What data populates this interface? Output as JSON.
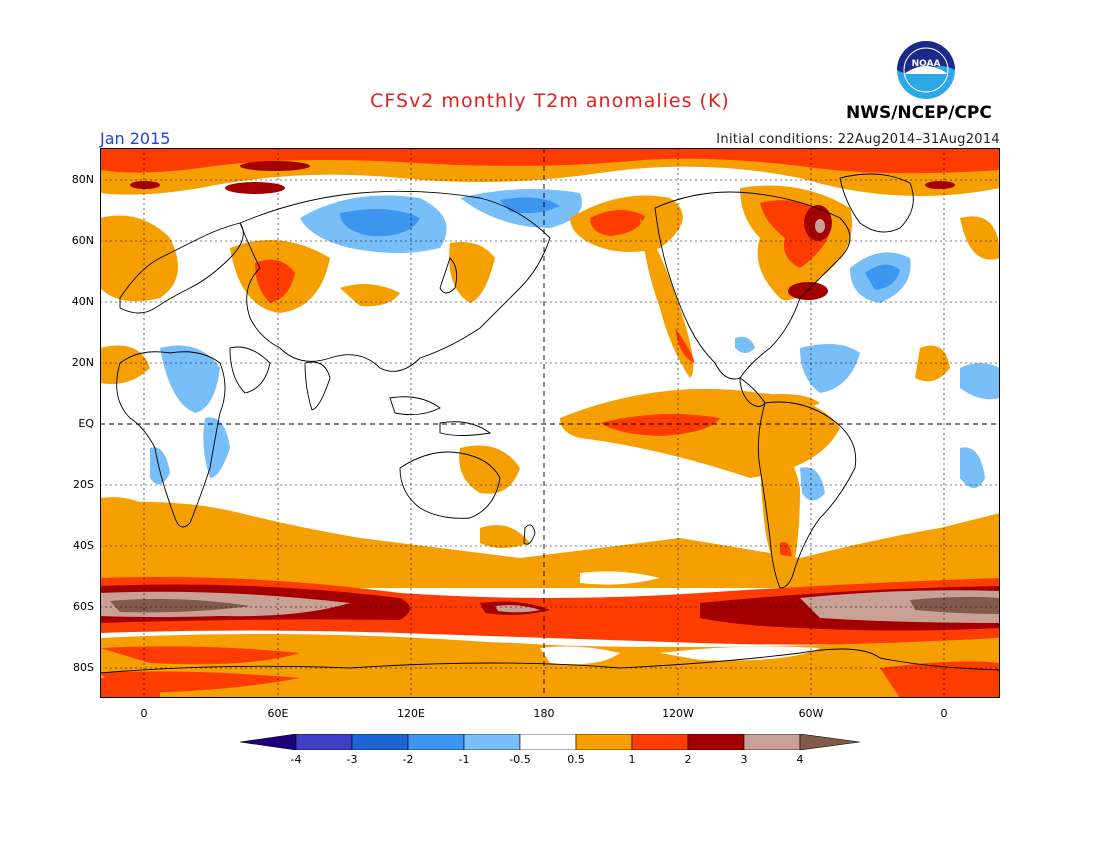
{
  "header": {
    "title": "CFSv2 monthly T2m anomalies (K)",
    "month": "Jan 2015",
    "initial_conditions": "Initial conditions: 22Aug2014–31Aug2014",
    "agency": "NWS/NCEP/CPC",
    "logo_text": "NOAA"
  },
  "map": {
    "lat_labels": [
      "80N",
      "60N",
      "40N",
      "20N",
      "EQ",
      "20S",
      "40S",
      "60S",
      "80S"
    ],
    "lon_labels": [
      "0",
      "60E",
      "120E",
      "180",
      "120W",
      "60W",
      "0"
    ]
  },
  "colorbar": {
    "labels": [
      "-4",
      "-3",
      "-2",
      "-1",
      "-0.5",
      "0.5",
      "1",
      "2",
      "3",
      "4"
    ],
    "colors": {
      "lt_m4": "#1c007a",
      "m4_m3": "#3e3ec8",
      "m3_m2": "#1e64d6",
      "m2_m1": "#3c96f0",
      "m1_m05": "#78bef8",
      "m05_05": "#ffffff",
      "p05_1": "#f5a000",
      "p1_2": "#ff3c00",
      "p2_3": "#a50000",
      "p3_4": "#c8a096",
      "gt_4": "#825a4b"
    }
  }
}
